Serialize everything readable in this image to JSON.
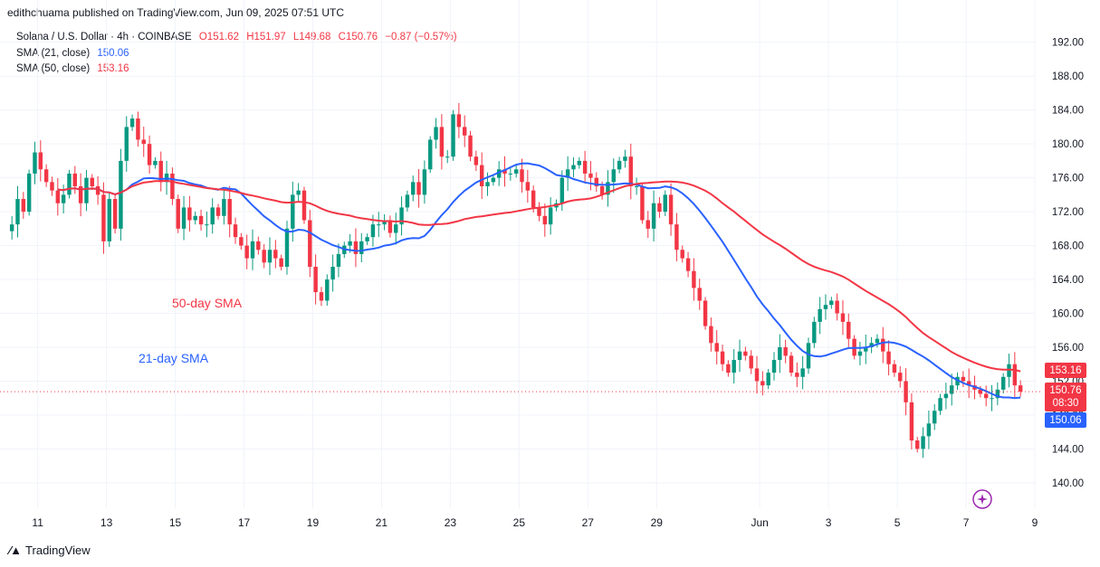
{
  "publisher_line": "edithchuama published on TradingView.com, Jun 09, 2025 07:51 UTC",
  "legend": {
    "symbol": "Solana / U.S. Dollar · 4h · COINBASE",
    "open": "O151.62",
    "high": "H151.97",
    "low": "L149.68",
    "close": "C150.76",
    "change": "−0.87 (−0.57%)",
    "sma21_label": "SMA (21, close)",
    "sma21_value": "150.06",
    "sma50_label": "SMA (50, close)",
    "sma50_value": "153.16"
  },
  "annotations": {
    "sma50": "50-day SMA",
    "sma21": "21-day SMA"
  },
  "price_tags": {
    "sma50": "153.16",
    "close": "150.76",
    "countdown": "08:30",
    "sma21": "150.06"
  },
  "brand": "TradingView",
  "colors": {
    "up": "#089981",
    "down": "#f23645",
    "sma21": "#2962ff",
    "sma50": "#f23645",
    "grid": "#f0f3fa",
    "axis_text": "#131722"
  },
  "chart_data": {
    "type": "candlestick",
    "symbol": "Solana / U.S. Dollar",
    "timeframe": "4h",
    "exchange": "COINBASE",
    "ylim": [
      137,
      194
    ],
    "y_ticks": [
      140,
      144,
      148,
      152,
      156,
      160,
      164,
      168,
      172,
      176,
      180,
      184,
      188,
      192
    ],
    "y_tick_labels": [
      "140.00",
      "144.00",
      "148.00",
      "152.00",
      "156.00",
      "160.00",
      "164.00",
      "168.00",
      "172.00",
      "176.00",
      "180.00",
      "184.00",
      "188.00",
      "192.00"
    ],
    "x_ticks": [
      {
        "label": "11",
        "t": 4.5
      },
      {
        "label": "13",
        "t": 16.5
      },
      {
        "label": "15",
        "t": 28.5
      },
      {
        "label": "17",
        "t": 40.5
      },
      {
        "label": "19",
        "t": 52.5
      },
      {
        "label": "21",
        "t": 64.5
      },
      {
        "label": "23",
        "t": 76.5
      },
      {
        "label": "25",
        "t": 88.5
      },
      {
        "label": "27",
        "t": 100.5
      },
      {
        "label": "29",
        "t": 112.5
      },
      {
        "label": "Jun",
        "t": 130.5
      },
      {
        "label": "3",
        "t": 142.5
      },
      {
        "label": "5",
        "t": 154.5
      },
      {
        "label": "7",
        "t": 166.5
      },
      {
        "label": "9",
        "t": 178.5
      }
    ],
    "last_price": 150.76,
    "closes": [
      170.5,
      173.5,
      172.0,
      176.5,
      179.0,
      177.0,
      175.5,
      174.5,
      173.0,
      174.0,
      176.5,
      175.0,
      173.0,
      176.0,
      175.0,
      174.0,
      168.5,
      173.5,
      170.0,
      178.0,
      182.0,
      183.0,
      180.5,
      180.0,
      177.5,
      178.0,
      175.5,
      176.5,
      173.5,
      170.0,
      172.5,
      171.0,
      171.5,
      170.5,
      170.5,
      172.5,
      171.5,
      173.5,
      170.5,
      169.0,
      168.0,
      166.5,
      168.5,
      167.5,
      166.0,
      167.5,
      166.5,
      165.5,
      170.0,
      174.0,
      174.5,
      171.0,
      165.5,
      162.5,
      161.5,
      164.0,
      165.5,
      167.0,
      168.0,
      168.5,
      167.0,
      168.5,
      169.0,
      170.5,
      170.5,
      171.0,
      169.5,
      170.5,
      172.5,
      174.0,
      175.5,
      174.0,
      177.0,
      180.5,
      182.0,
      178.5,
      178.5,
      183.5,
      182.0,
      181.0,
      178.5,
      177.5,
      175.0,
      175.5,
      176.0,
      177.0,
      176.5,
      176.5,
      177.0,
      175.5,
      174.5,
      172.5,
      171.5,
      170.5,
      172.5,
      173.0,
      176.0,
      177.0,
      177.5,
      178.0,
      176.5,
      176.0,
      175.0,
      174.0,
      175.5,
      177.0,
      178.0,
      178.5,
      175.0,
      175.0,
      171.0,
      170.0,
      173.0,
      172.0,
      174.0,
      170.5,
      167.5,
      166.5,
      165.0,
      163.0,
      161.5,
      158.5,
      156.5,
      155.5,
      154.0,
      153.0,
      154.5,
      155.5,
      155.0,
      153.5,
      152.0,
      151.5,
      153.0,
      154.5,
      156.0,
      155.0,
      153.0,
      152.5,
      153.5,
      156.5,
      159.0,
      160.5,
      161.0,
      161.5,
      160.0,
      159.0,
      157.0,
      155.0,
      155.5,
      156.0,
      156.5,
      157.0,
      155.5,
      154.0,
      153.0,
      152.0,
      149.5,
      145.0,
      144.0,
      145.5,
      147.0,
      148.5,
      150.0,
      150.5,
      151.5,
      152.5,
      152.0,
      151.5,
      151.0,
      150.5,
      150.0,
      150.0,
      151.0,
      152.5,
      154.0,
      151.5,
      150.76
    ],
    "series": [
      {
        "name": "SMA (21, close)",
        "color": "#2962ff",
        "last": 150.06
      },
      {
        "name": "SMA (50, close)",
        "color": "#f23645",
        "last": 153.16
      }
    ]
  }
}
